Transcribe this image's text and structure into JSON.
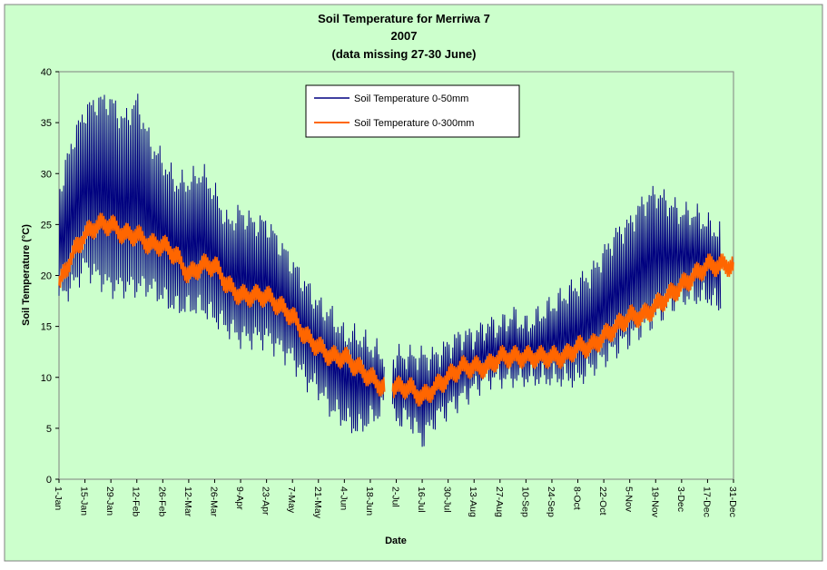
{
  "chart_data": {
    "type": "line",
    "title_lines": [
      "Soil Temperature for Merriwa 7",
      "2007",
      "(data missing 27-30 June)"
    ],
    "xlabel": "Date",
    "ylabel": "Soil Temperature (°C)",
    "ylim": [
      0,
      40
    ],
    "yticks": [
      0,
      5,
      10,
      15,
      20,
      25,
      30,
      35,
      40
    ],
    "xlim": [
      0,
      364
    ],
    "x_ticks": [
      {
        "day": 0,
        "label": "1-Jan"
      },
      {
        "day": 14,
        "label": "15-Jan"
      },
      {
        "day": 28,
        "label": "29-Jan"
      },
      {
        "day": 42,
        "label": "12-Feb"
      },
      {
        "day": 56,
        "label": "26-Feb"
      },
      {
        "day": 70,
        "label": "12-Mar"
      },
      {
        "day": 84,
        "label": "26-Mar"
      },
      {
        "day": 98,
        "label": "9-Apr"
      },
      {
        "day": 112,
        "label": "23-Apr"
      },
      {
        "day": 126,
        "label": "7-May"
      },
      {
        "day": 140,
        "label": "21-May"
      },
      {
        "day": 154,
        "label": "4-Jun"
      },
      {
        "day": 168,
        "label": "18-Jun"
      },
      {
        "day": 182,
        "label": "2-Jul"
      },
      {
        "day": 196,
        "label": "16-Jul"
      },
      {
        "day": 210,
        "label": "30-Jul"
      },
      {
        "day": 224,
        "label": "13-Aug"
      },
      {
        "day": 238,
        "label": "27-Aug"
      },
      {
        "day": 252,
        "label": "10-Sep"
      },
      {
        "day": 266,
        "label": "24-Sep"
      },
      {
        "day": 280,
        "label": "8-Oct"
      },
      {
        "day": 294,
        "label": "22-Oct"
      },
      {
        "day": 308,
        "label": "5-Nov"
      },
      {
        "day": 322,
        "label": "19-Nov"
      },
      {
        "day": 336,
        "label": "3-Dec"
      },
      {
        "day": 350,
        "label": "17-Dec"
      },
      {
        "day": 364,
        "label": "31-Dec"
      }
    ],
    "legend_position": "top-center",
    "grid": false,
    "series": [
      {
        "name": "Soil Temperature 0-50mm",
        "color": "#000080",
        "days": [
          0,
          7,
          14,
          21,
          28,
          35,
          42,
          49,
          56,
          63,
          70,
          77,
          84,
          91,
          98,
          105,
          112,
          119,
          126,
          133,
          140,
          147,
          154,
          161,
          168,
          175,
          182,
          189,
          196,
          203,
          210,
          217,
          224,
          231,
          238,
          245,
          252,
          259,
          266,
          273,
          280,
          287,
          294,
          301,
          308,
          315,
          322,
          329,
          336,
          343,
          350,
          357
        ],
        "mean": [
          21,
          23,
          25,
          25,
          25,
          24,
          25,
          23,
          23,
          21,
          21,
          21,
          20,
          18,
          18,
          17,
          18,
          16,
          15,
          13,
          12,
          11,
          10,
          10,
          9,
          9,
          9,
          9,
          8,
          9,
          10,
          11,
          11,
          12,
          12,
          12,
          12,
          13,
          13,
          13,
          13,
          14,
          15,
          16,
          16,
          18,
          19,
          20,
          21,
          21,
          21,
          21
        ],
        "max": [
          28,
          33,
          36,
          37,
          37,
          35,
          37,
          33,
          31,
          29,
          29,
          30,
          28,
          25,
          26,
          25,
          25,
          23,
          21,
          19,
          17,
          16,
          14,
          14,
          13,
          12,
          12,
          12,
          12,
          12,
          13,
          14,
          14,
          15,
          15,
          16,
          15,
          16,
          17,
          18,
          19,
          20,
          22,
          24,
          25,
          27,
          28,
          27,
          26,
          26,
          25,
          24
        ],
        "min": [
          18,
          19,
          21,
          20,
          19,
          19,
          19,
          19,
          18,
          17,
          17,
          17,
          16,
          15,
          14,
          14,
          14,
          13,
          12,
          10,
          9,
          7,
          6,
          5,
          6,
          7,
          6,
          6,
          4,
          6,
          7,
          8,
          9,
          10,
          10,
          10,
          10,
          10,
          10,
          10,
          10,
          11,
          12,
          13,
          14,
          15,
          16,
          17,
          18,
          18,
          18,
          17
        ]
      },
      {
        "name": "Soil Temperature  0-300mm",
        "color": "#FF6600",
        "days": [
          0,
          7,
          14,
          21,
          28,
          35,
          42,
          49,
          56,
          63,
          70,
          77,
          84,
          91,
          98,
          105,
          112,
          119,
          126,
          133,
          140,
          147,
          154,
          161,
          168,
          175,
          182,
          189,
          196,
          203,
          210,
          217,
          224,
          231,
          238,
          245,
          252,
          259,
          266,
          273,
          280,
          287,
          294,
          301,
          308,
          315,
          322,
          329,
          336,
          343,
          350,
          357,
          364
        ],
        "values": [
          19,
          22,
          24,
          25,
          25,
          24,
          24,
          23,
          23,
          22,
          20,
          21,
          21,
          19,
          18,
          18,
          18,
          17,
          16,
          14,
          13,
          12,
          12,
          11,
          10,
          9,
          9,
          9,
          8,
          9,
          10,
          11,
          11,
          11,
          12,
          12,
          12,
          12,
          12,
          12,
          13,
          13,
          14,
          15,
          16,
          16,
          17,
          18,
          19,
          20,
          21,
          21,
          21
        ],
        "swing": 1.3
      }
    ],
    "gap_days": [
      176,
      177,
      178,
      179
    ]
  },
  "colors": {
    "page_background": "#CCFFCC",
    "plot_background": "#CCFFCC",
    "outer_border": "#808080"
  }
}
